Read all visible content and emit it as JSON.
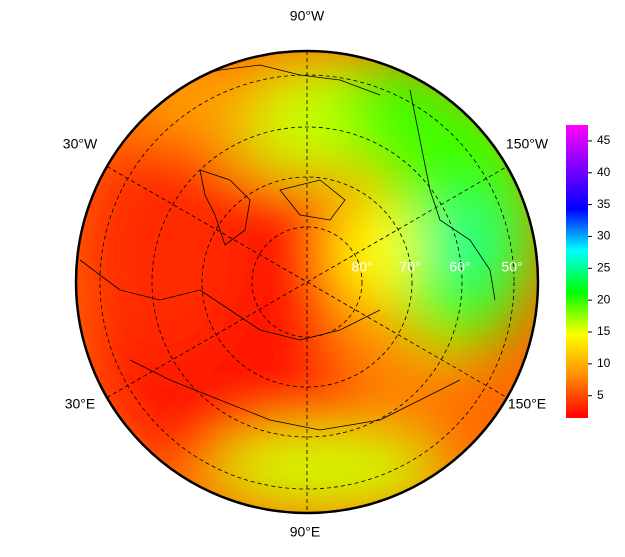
{
  "map": {
    "lon_labels": [
      "90°W",
      "30°W",
      "150°W",
      "30°E",
      "150°E",
      "90°E"
    ],
    "lat_labels": [
      "80°",
      "70°",
      "60°",
      "50°"
    ],
    "colorbar": {
      "ticks": [
        5,
        10,
        15,
        20,
        25,
        30,
        35,
        40,
        45
      ],
      "lim": [
        1.5,
        47.5
      ],
      "colors": [
        "#ff0000",
        "#ff8c00",
        "#ffff00",
        "#00ff00",
        "#00ffff",
        "#0000ff",
        "#8000ff",
        "#ff00ff"
      ]
    }
  }
}
